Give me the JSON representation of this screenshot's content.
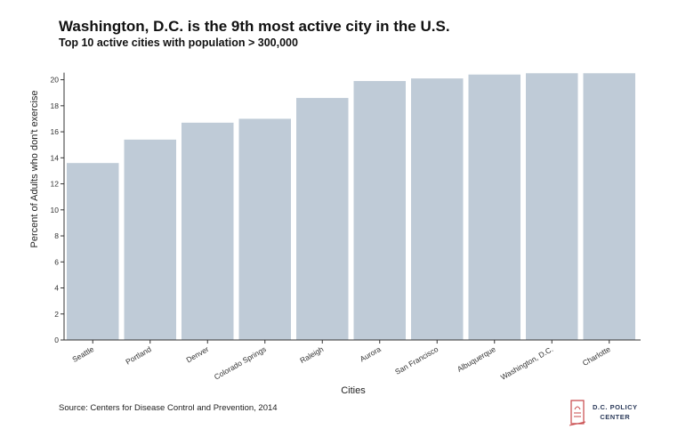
{
  "header": {
    "title": "Washington, D.C. is the 9th most active city in the U.S.",
    "subtitle": "Top 10 active cities with population > 300,000"
  },
  "footer": {
    "source": "Source: Centers for Disease Control and Prevention, 2014",
    "logo_line1": "D.C. POLICY",
    "logo_line2": "CENTER"
  },
  "chart_data": {
    "type": "bar",
    "title": "Washington, D.C. is the 9th most active city in the U.S.",
    "subtitle": "Top 10 active cities with population > 300,000",
    "xlabel": "Cities",
    "ylabel": "Percent of Adults who don't exercise",
    "categories": [
      "Seattle",
      "Portland",
      "Denver",
      "Colorado Springs",
      "Raleigh",
      "Aurora",
      "San Francisco",
      "Albuquerque",
      "Washington, D.C.",
      "Charlotte"
    ],
    "values": [
      13.6,
      15.4,
      16.7,
      17.0,
      18.6,
      19.9,
      20.1,
      20.4,
      20.5,
      20.5
    ],
    "ylim": [
      0,
      21
    ],
    "yticks": [
      0,
      2,
      4,
      6,
      8,
      10,
      12,
      14,
      16,
      18,
      20
    ],
    "grid": false,
    "bar_color": "#bfcbd7",
    "axis_color": "#333333"
  }
}
